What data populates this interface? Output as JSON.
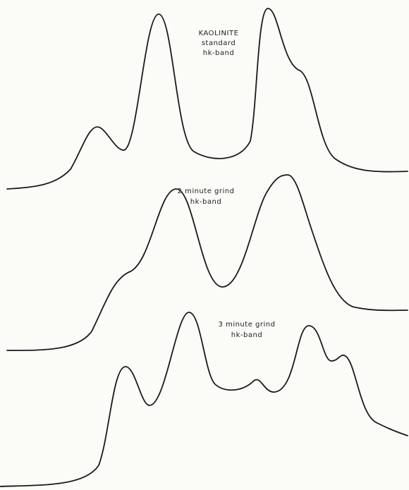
{
  "traces": [
    {
      "label": [
        "KAOLINITE",
        "standard",
        "hk-band"
      ]
    },
    {
      "label": [
        "2 minute grind",
        "hk-band"
      ]
    },
    {
      "label": [
        "3 minute grind",
        "hk-band"
      ]
    }
  ]
}
